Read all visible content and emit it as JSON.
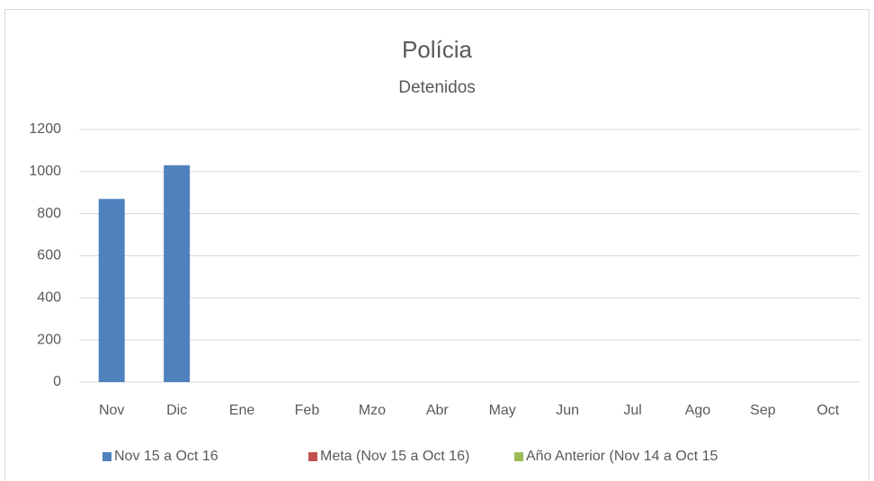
{
  "chart_data": {
    "type": "bar",
    "title": "Polícia",
    "subtitle": "Detenidos",
    "categories": [
      "Nov",
      "Dic",
      "Ene",
      "Feb",
      "Mzo",
      "Abr",
      "May",
      "Jun",
      "Jul",
      "Ago",
      "Sep",
      "Oct"
    ],
    "series": [
      {
        "name": "Nov 15 a Oct 16",
        "color": "#4f81bd",
        "values": [
          870,
          1030,
          null,
          null,
          null,
          null,
          null,
          null,
          null,
          null,
          null,
          null
        ]
      },
      {
        "name": "Meta (Nov 15 a Oct 16)",
        "color": "#c0504d",
        "values": [
          null,
          null,
          null,
          null,
          null,
          null,
          null,
          null,
          null,
          null,
          null,
          null
        ]
      },
      {
        "name": "Año Anterior (Nov 14 a Oct 15",
        "color": "#9bbb59",
        "values": [
          null,
          null,
          null,
          null,
          null,
          null,
          null,
          null,
          null,
          null,
          null,
          null
        ]
      }
    ],
    "ylim": [
      0,
      1200
    ],
    "yticks": [
      0,
      200,
      400,
      600,
      800,
      1000,
      1200
    ],
    "grid": true,
    "legend": "bottom"
  }
}
